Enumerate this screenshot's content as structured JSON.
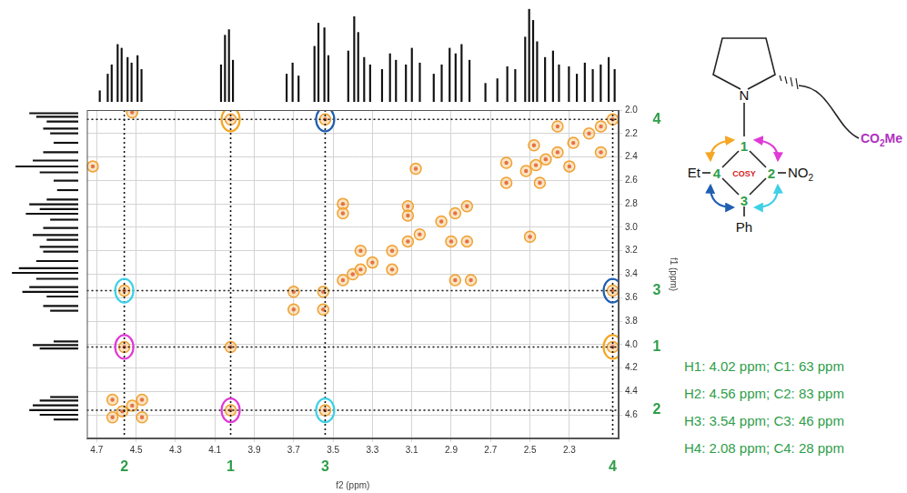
{
  "chart_data": [
    {
      "type": "scatter",
      "xlabel": "f2 (ppm)",
      "ylabel": "f1 (ppm)",
      "xlim": [
        2.05,
        4.75
      ],
      "ylim": [
        2.0,
        4.8
      ],
      "xticks": [
        2.3,
        2.5,
        2.7,
        2.9,
        3.1,
        3.3,
        3.5,
        3.7,
        3.9,
        4.1,
        4.3,
        4.5,
        4.7
      ],
      "yticks": [
        {
          "value": 2,
          "label": "2.0"
        },
        2.2,
        2.4,
        2.6,
        2.8,
        {
          "value": 3,
          "label": "3.0"
        },
        3.2,
        3.4,
        3.6,
        3.8,
        {
          "value": 4,
          "label": "4.0"
        },
        4.2,
        4.4,
        4.6
      ],
      "grid": true,
      "color": "#f0a030",
      "x": [
        4.62,
        4.57,
        4.52,
        4.47,
        4.02,
        3.7,
        3.55,
        3.45,
        3.4,
        3.36,
        3.3,
        3.2,
        3.12,
        3.06,
        2.95,
        2.88,
        2.82,
        2.62,
        2.52,
        2.47,
        2.42,
        2.36,
        2.28,
        2.2,
        2.14,
        2.08,
        4.56,
        4.02,
        4.56,
        3.54,
        4.02,
        2.08,
        3.54,
        2.08,
        3.45,
        3.45,
        2.8,
        2.88,
        3.12,
        3.12,
        2.82,
        2.9,
        3.36,
        3.2,
        3.7,
        3.55,
        2.5,
        3.08,
        2.62,
        2.45,
        2.48,
        2.3,
        4.47,
        4.62,
        4.72,
        4.52,
        2.14,
        2.36
      ],
      "values": [
        4.62,
        4.57,
        4.52,
        4.47,
        4.02,
        3.7,
        3.55,
        3.45,
        3.4,
        3.36,
        3.3,
        3.2,
        3.12,
        3.06,
        2.95,
        2.88,
        2.82,
        2.62,
        2.52,
        2.47,
        2.42,
        2.36,
        2.28,
        2.2,
        2.14,
        2.08,
        4.02,
        4.56,
        3.54,
        4.56,
        2.08,
        4.02,
        2.08,
        3.54,
        2.8,
        2.88,
        3.45,
        3.45,
        2.82,
        2.9,
        3.12,
        3.12,
        3.2,
        3.36,
        3.55,
        3.7,
        3.08,
        2.5,
        2.45,
        2.62,
        2.3,
        2.48,
        4.62,
        4.47,
        2.48,
        2.02,
        2.36,
        2.14
      ],
      "assignments": [
        {
          "label": "1",
          "ppm": 4.02
        },
        {
          "label": "2",
          "ppm": 4.56
        },
        {
          "label": "3",
          "ppm": 3.54
        },
        {
          "label": "4",
          "ppm": 2.08
        }
      ],
      "cross_peaks": [
        {
          "x": 4.56,
          "y": 4.02,
          "color": "#e03ad6"
        },
        {
          "x": 4.02,
          "y": 4.56,
          "color": "#e03ad6"
        },
        {
          "x": 4.56,
          "y": 3.54,
          "color": "#3fd0e6"
        },
        {
          "x": 3.54,
          "y": 4.56,
          "color": "#3fd0e6"
        },
        {
          "x": 4.02,
          "y": 2.08,
          "color": "#f5a623"
        },
        {
          "x": 2.08,
          "y": 4.02,
          "color": "#f5a623"
        },
        {
          "x": 3.54,
          "y": 2.08,
          "color": "#1f5fb0"
        },
        {
          "x": 2.08,
          "y": 3.54,
          "color": "#1f5fb0"
        }
      ]
    },
    {
      "type": "bar",
      "tick_labels": false,
      "color": "#111111",
      "xlim": [
        2.05,
        4.75
      ],
      "ylim": [
        0,
        110
      ],
      "x": [
        4.66,
        4.62,
        4.6,
        4.57,
        4.55,
        4.52,
        4.5,
        4.47,
        4.45,
        4.05,
        4.03,
        4.01,
        3.99,
        3.72,
        3.69,
        3.66,
        3.58,
        3.56,
        3.53,
        3.51,
        3.41,
        3.38,
        3.36,
        3.33,
        3.3,
        3.24,
        3.2,
        3.17,
        3.12,
        3.09,
        3.05,
        2.98,
        2.94,
        2.9,
        2.87,
        2.84,
        2.8,
        2.72,
        2.66,
        2.61,
        2.57,
        2.52,
        2.5,
        2.48,
        2.46,
        2.42,
        2.38,
        2.35,
        2.3,
        2.26,
        2.22,
        2.18,
        2.14,
        2.1,
        2.07
      ],
      "values": [
        12,
        30,
        40,
        62,
        58,
        48,
        42,
        50,
        35,
        40,
        72,
        78,
        45,
        30,
        42,
        28,
        60,
        85,
        80,
        50,
        55,
        92,
        75,
        48,
        40,
        35,
        52,
        45,
        40,
        58,
        42,
        30,
        40,
        58,
        52,
        62,
        45,
        20,
        25,
        38,
        35,
        70,
        100,
        88,
        65,
        48,
        55,
        40,
        38,
        30,
        42,
        35,
        40,
        48,
        35
      ]
    },
    {
      "type": "bar",
      "orientation": "horizontal",
      "tick_labels": false,
      "color": "#111111",
      "ylim": [
        2.0,
        4.8
      ],
      "xlim": [
        0,
        110
      ],
      "y": [
        2.05,
        2.08,
        2.12,
        2.18,
        2.22,
        2.3,
        2.38,
        2.45,
        2.5,
        2.55,
        2.62,
        2.7,
        2.78,
        2.82,
        2.86,
        2.9,
        2.95,
        3.02,
        3.08,
        3.12,
        3.18,
        3.22,
        3.3,
        3.36,
        3.4,
        3.45,
        3.52,
        3.56,
        3.6,
        3.68,
        3.72,
        3.98,
        4.01,
        4.04,
        4.45,
        4.48,
        4.52,
        4.56,
        4.6,
        4.64
      ],
      "values": [
        70,
        60,
        45,
        50,
        40,
        35,
        50,
        65,
        90,
        55,
        35,
        30,
        45,
        70,
        55,
        75,
        40,
        50,
        65,
        45,
        55,
        50,
        60,
        85,
        95,
        60,
        70,
        80,
        45,
        50,
        40,
        35,
        65,
        55,
        40,
        55,
        65,
        70,
        55,
        35
      ]
    }
  ],
  "structure": {
    "amine": "N",
    "ring": {
      "top": "1",
      "right": "2",
      "bottom": "3",
      "left": "4"
    },
    "center_label": "COSY",
    "substituents": {
      "left": "Et",
      "right": "NO2",
      "bottom": "Ph"
    },
    "side_chain": "CO2Me"
  },
  "assignment_lines": [
    "H1: 4.02 ppm; C1: 63 ppm",
    "H2: 4.56 ppm; C2: 83 ppm",
    "H3: 3.54 ppm; C3: 46 ppm",
    "H4: 2.08 ppm; C4: 28 ppm"
  ]
}
